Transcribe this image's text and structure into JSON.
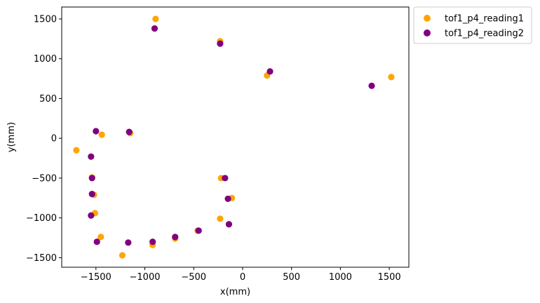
{
  "chart_data": {
    "type": "scatter",
    "title": "",
    "xlabel": "x(mm)",
    "ylabel": "y(mm)",
    "xlim": [
      -1850,
      1700
    ],
    "ylim": [
      -1620,
      1650
    ],
    "xticks": [
      -1500,
      -1000,
      -500,
      0,
      500,
      1000,
      1500
    ],
    "yticks": [
      -1500,
      -1000,
      -500,
      0,
      500,
      1000,
      1500
    ],
    "xtick_labels": [
      "−1500",
      "−1000",
      "−500",
      "0",
      "500",
      "1000",
      "1500"
    ],
    "ytick_labels": [
      "−1500",
      "−1000",
      "−500",
      "0",
      "500",
      "1000",
      "1500"
    ],
    "grid": false,
    "legend_position": "outside-top-right",
    "series": [
      {
        "name": "tof1_p4_reading1",
        "color": "#ffa500",
        "points": [
          [
            -890,
            1500
          ],
          [
            -230,
            1220
          ],
          [
            250,
            790
          ],
          [
            1520,
            770
          ],
          [
            -1150,
            65
          ],
          [
            -1440,
            45
          ],
          [
            -1700,
            -150
          ],
          [
            -1540,
            -490
          ],
          [
            -1520,
            -710
          ],
          [
            -1510,
            -940
          ],
          [
            -1450,
            -1240
          ],
          [
            -1230,
            -1470
          ],
          [
            -920,
            -1340
          ],
          [
            -690,
            -1260
          ],
          [
            -460,
            -1160
          ],
          [
            -220,
            -500
          ],
          [
            -110,
            -750
          ],
          [
            -230,
            -1010
          ],
          [
            -140,
            -1080
          ]
        ]
      },
      {
        "name": "tof1_p4_reading2",
        "color": "#800080",
        "points": [
          [
            -900,
            1380
          ],
          [
            -230,
            1190
          ],
          [
            280,
            840
          ],
          [
            1320,
            660
          ],
          [
            -1160,
            80
          ],
          [
            -1500,
            90
          ],
          [
            -1550,
            -230
          ],
          [
            -1540,
            -500
          ],
          [
            -1540,
            -700
          ],
          [
            -1550,
            -970
          ],
          [
            -1490,
            -1300
          ],
          [
            -1170,
            -1310
          ],
          [
            -920,
            -1300
          ],
          [
            -690,
            -1240
          ],
          [
            -450,
            -1160
          ],
          [
            -180,
            -500
          ],
          [
            -150,
            -760
          ],
          [
            -140,
            -1080
          ]
        ]
      }
    ]
  }
}
